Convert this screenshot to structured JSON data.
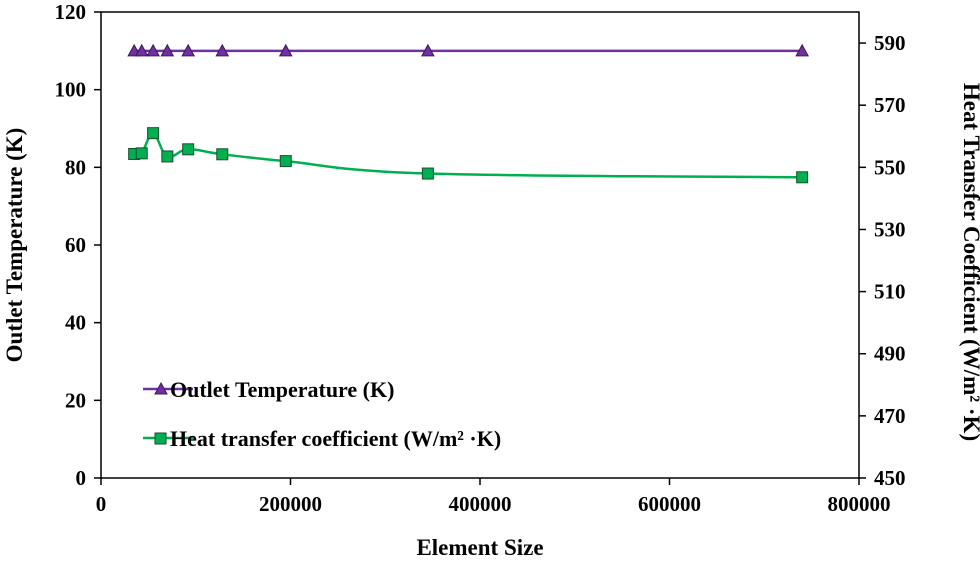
{
  "chart_data": {
    "type": "line",
    "xlabel": "Element Size",
    "ylabel": "Outlet Temperature (K)",
    "y2label": "Heat Transfer Coefficient (W/m² ·K)",
    "xlim": [
      0,
      800000
    ],
    "ylim": [
      0,
      120
    ],
    "y2lim": [
      450,
      600
    ],
    "x_ticks": [
      0,
      200000,
      400000,
      600000,
      800000
    ],
    "x_tick_labels": [
      "0",
      "200000",
      "400000",
      "600000",
      "800000"
    ],
    "y_ticks": [
      0,
      20,
      40,
      60,
      80,
      100,
      120
    ],
    "y_tick_labels": [
      "0",
      "20",
      "40",
      "60",
      "80",
      "100",
      "120"
    ],
    "y2_ticks": [
      450,
      470,
      490,
      510,
      530,
      550,
      570,
      590
    ],
    "y2_tick_labels": [
      "450",
      "470",
      "490",
      "510",
      "530",
      "550",
      "570",
      "590"
    ],
    "legend_position": "bottom-left",
    "series": [
      {
        "name": "Outlet Temperature (K)",
        "axis": "left",
        "color": "#7030a0",
        "marker": "triangle",
        "x": [
          35000,
          43000,
          55000,
          70000,
          92000,
          128000,
          195000,
          345000,
          740000
        ],
        "values": [
          110,
          110,
          110,
          110,
          110,
          110,
          110,
          110,
          110
        ]
      },
      {
        "name": "Heat transfer coefficient (W/m² ·K)",
        "axis": "right",
        "color": "#00b050",
        "marker": "square",
        "x": [
          35000,
          43000,
          55000,
          70000,
          92000,
          128000,
          195000,
          345000,
          740000
        ],
        "values": [
          554.3,
          554.5,
          561,
          553.5,
          555.8,
          554.2,
          552,
          548,
          546.8
        ]
      }
    ]
  }
}
